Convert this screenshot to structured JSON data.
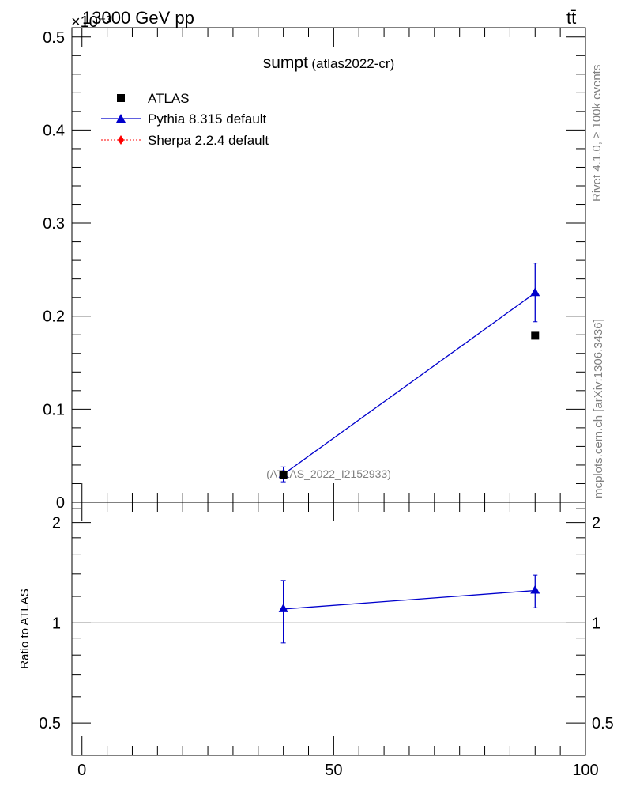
{
  "header": {
    "energy": "13000 GeV pp",
    "process": "tt̄",
    "exponent": "×10⁻³",
    "rivet": "Rivet 4.1.0, ≥ 100k events",
    "mcplots": "mcplots.cern.ch [arXiv:1306.3436]",
    "analysis": "(ATLAS_2022_I2152933)"
  },
  "title": {
    "main": "sumpt",
    "sub": "(atlas2022-cr)"
  },
  "legend": [
    {
      "label": "ATLAS",
      "color": "#000000",
      "marker": "square"
    },
    {
      "label": "Pythia 8.315 default",
      "color": "#0000cc",
      "marker": "triangle"
    },
    {
      "label": "Sherpa 2.2.4 default",
      "color": "#ff0000",
      "marker": "diamond"
    }
  ],
  "chart_data": [
    {
      "type": "scatter",
      "panel": "main",
      "title": "sumpt (atlas2022-cr)",
      "xlim": [
        -2,
        100
      ],
      "ylim": [
        0,
        0.51
      ],
      "yticks": [
        "0",
        "0.1",
        "0.2",
        "0.3",
        "0.4",
        "0.5"
      ],
      "y_multiplier_label": "×10⁻³",
      "series": [
        {
          "name": "ATLAS",
          "x": [
            40,
            90
          ],
          "y": [
            0.029,
            0.179
          ]
        },
        {
          "name": "Pythia 8.315 default",
          "x": [
            40,
            90
          ],
          "y": [
            0.03,
            0.225
          ],
          "yerr_low": [
            0.008,
            0.031
          ],
          "yerr_high": [
            0.008,
            0.032
          ]
        },
        {
          "name": "Sherpa 2.2.4 default",
          "x": [],
          "y": []
        }
      ]
    },
    {
      "type": "line",
      "panel": "ratio",
      "ylabel": "Ratio to ATLAS",
      "xlim": [
        -2,
        100
      ],
      "ylim": [
        0.4,
        2.3
      ],
      "log_y": true,
      "yticks": [
        "0.5",
        "1",
        "2"
      ],
      "xticks": [
        "0",
        "50",
        "100"
      ],
      "reference": 1,
      "series": [
        {
          "name": "Pythia 8.315 default",
          "x": [
            40,
            90
          ],
          "y": [
            1.1,
            1.25
          ],
          "yerr_low": [
            0.23,
            0.14
          ],
          "yerr_high": [
            0.24,
            0.14
          ]
        }
      ]
    }
  ],
  "colors": {
    "pythia": "#0000cc",
    "atlas": "#000000",
    "sherpa": "#ff0000",
    "watermark": "#808080"
  }
}
